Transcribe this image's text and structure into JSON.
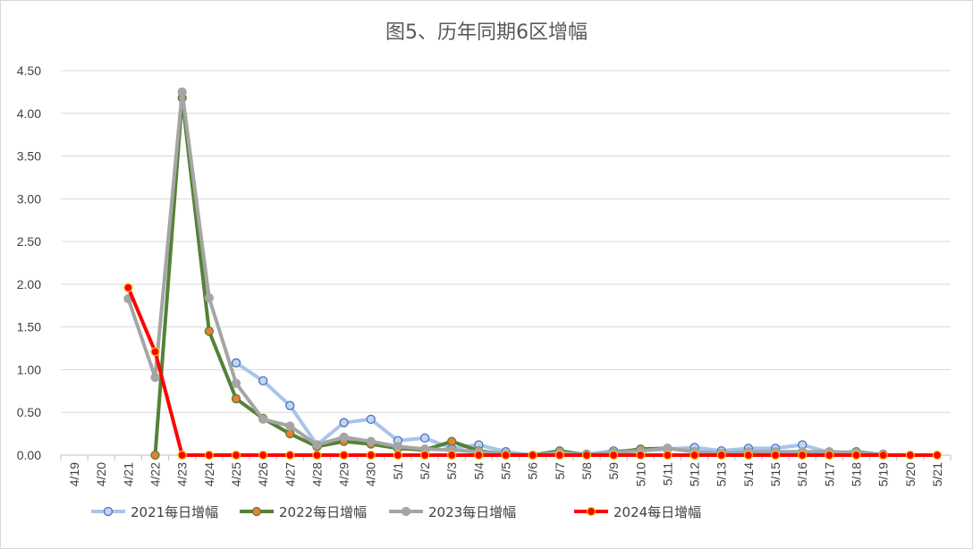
{
  "chart_data": {
    "type": "line",
    "title": "图5、历年同期6区增幅",
    "xlabel": "",
    "ylabel": "",
    "categories": [
      "4/19",
      "4/20",
      "4/21",
      "4/22",
      "4/23",
      "4/24",
      "4/25",
      "4/26",
      "4/27",
      "4/28",
      "4/29",
      "4/30",
      "5/1",
      "5/2",
      "5/3",
      "5/4",
      "5/5",
      "5/6",
      "5/7",
      "5/8",
      "5/9",
      "5/10",
      "5/11",
      "5/12",
      "5/13",
      "5/14",
      "5/15",
      "5/16",
      "5/17",
      "5/18",
      "5/19",
      "5/20",
      "5/21"
    ],
    "ylim": [
      0,
      4.5
    ],
    "yticks": [
      "0.00",
      "0.50",
      "1.00",
      "1.50",
      "2.00",
      "2.50",
      "3.00",
      "3.50",
      "4.00",
      "4.50"
    ],
    "grid": true,
    "legend_position": "bottom",
    "series": [
      {
        "name": "2021每日增幅",
        "line_color": "#a9c4eb",
        "marker_fill": "#c5d5f0",
        "marker_edge": "#4472c4",
        "values": [
          null,
          null,
          null,
          null,
          null,
          null,
          1.08,
          0.87,
          0.58,
          0.12,
          0.38,
          0.42,
          0.17,
          0.2,
          0.08,
          0.12,
          0.04,
          0.0,
          0.03,
          0.01,
          0.05,
          0.05,
          0.07,
          0.09,
          0.05,
          0.08,
          0.08,
          0.12,
          0.03,
          0.03,
          0.01,
          null,
          null
        ]
      },
      {
        "name": "2022每日增幅",
        "line_color": "#548235",
        "marker_fill": "#ed7d31",
        "marker_edge": "#548235",
        "values": [
          null,
          null,
          null,
          0.0,
          4.18,
          1.45,
          0.66,
          0.43,
          0.25,
          0.1,
          0.16,
          0.13,
          0.08,
          0.06,
          0.16,
          0.05,
          0.01,
          0.0,
          0.05,
          0.0,
          0.03,
          0.07,
          0.08,
          0.04,
          0.02,
          0.03,
          0.03,
          0.03,
          0.02,
          0.04,
          0.0,
          null,
          null
        ]
      },
      {
        "name": "2023每日增幅",
        "line_color": "#a5a5a5",
        "marker_fill": "#a5a5a5",
        "marker_edge": "#a5a5a5",
        "values": [
          null,
          null,
          1.83,
          0.91,
          4.25,
          1.84,
          0.84,
          0.42,
          0.34,
          0.12,
          0.21,
          0.16,
          0.1,
          0.07,
          0.06,
          0.04,
          0.01,
          0.0,
          0.03,
          0.0,
          0.03,
          0.05,
          0.08,
          0.04,
          0.02,
          0.04,
          0.04,
          0.04,
          0.04,
          0.03,
          0.0,
          null,
          null
        ]
      },
      {
        "name": "2024每日增幅",
        "line_color": "#ff0000",
        "marker_fill": "#ff0000",
        "marker_edge": "#ffc000",
        "values": [
          null,
          null,
          1.96,
          1.21,
          0.0,
          0.0,
          0.0,
          0.0,
          0.0,
          0.0,
          0.0,
          0.0,
          0.0,
          0.0,
          0.0,
          0.0,
          0.0,
          0.0,
          0.0,
          0.0,
          0.0,
          0.0,
          0.0,
          0.0,
          0.0,
          0.0,
          0.0,
          0.0,
          0.0,
          0.0,
          0.0,
          0.0,
          0.0
        ]
      }
    ]
  }
}
